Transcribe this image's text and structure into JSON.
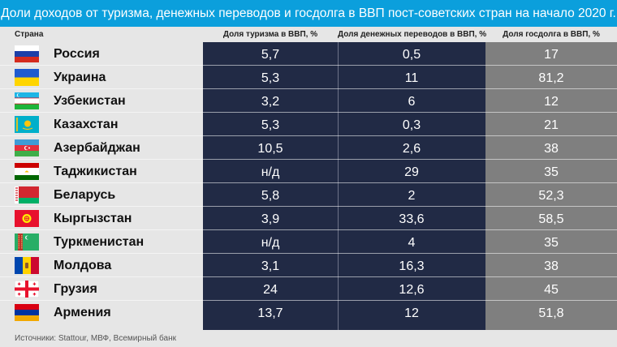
{
  "header": {
    "title": "Доли доходов от туризма, денежных переводов и госдолга в ВВП пост-советских стран на начало 2020 г."
  },
  "columns": {
    "country": "Страна",
    "tourism": "Доля туризма в ВВП, %",
    "remittances": "Доля денежных переводов в ВВП, %",
    "debt": "Доля госдолга в ВВП, %"
  },
  "rows": [
    {
      "country": "Россия",
      "flag": "russia-flag-icon",
      "tourism": "5,7",
      "remittances": "0,5",
      "debt": "17"
    },
    {
      "country": "Украина",
      "flag": "ukraine-flag-icon",
      "tourism": "5,3",
      "remittances": "11",
      "debt": "81,2"
    },
    {
      "country": "Узбекистан",
      "flag": "uzbekistan-flag-icon",
      "tourism": "3,2",
      "remittances": "6",
      "debt": "12"
    },
    {
      "country": "Казахстан",
      "flag": "kazakhstan-flag-icon",
      "tourism": "5,3",
      "remittances": "0,3",
      "debt": "21"
    },
    {
      "country": "Азербайджан",
      "flag": "azerbaijan-flag-icon",
      "tourism": "10,5",
      "remittances": "2,6",
      "debt": "38"
    },
    {
      "country": "Таджикистан",
      "flag": "tajikistan-flag-icon",
      "tourism": "н/д",
      "remittances": "29",
      "debt": "35"
    },
    {
      "country": "Беларусь",
      "flag": "belarus-flag-icon",
      "tourism": "5,8",
      "remittances": "2",
      "debt": "52,3"
    },
    {
      "country": "Кыргызстан",
      "flag": "kyrgyzstan-flag-icon",
      "tourism": "3,9",
      "remittances": "33,6",
      "debt": "58,5"
    },
    {
      "country": "Туркменистан",
      "flag": "turkmenistan-flag-icon",
      "tourism": "н/д",
      "remittances": "4",
      "debt": "35"
    },
    {
      "country": "Молдова",
      "flag": "moldova-flag-icon",
      "tourism": "3,1",
      "remittances": "16,3",
      "debt": "38"
    },
    {
      "country": "Грузия",
      "flag": "georgia-flag-icon",
      "tourism": "24",
      "remittances": "12,6",
      "debt": "45"
    },
    {
      "country": "Армения",
      "flag": "armenia-flag-icon",
      "tourism": "13,7",
      "remittances": "12",
      "debt": "51,8"
    }
  ],
  "chart_data": {
    "type": "table",
    "title": "Доли доходов от туризма, денежных переводов и госдолга в ВВП пост-советских стран на начало 2020 г.",
    "columns": [
      "Страна",
      "Доля туризма в ВВП, %",
      "Доля денежных переводов в ВВП, %",
      "Доля госдолга в ВВП, %"
    ],
    "categories": [
      "Россия",
      "Украина",
      "Узбекистан",
      "Казахстан",
      "Азербайджан",
      "Таджикистан",
      "Беларусь",
      "Кыргызстан",
      "Туркменистан",
      "Молдова",
      "Грузия",
      "Армения"
    ],
    "series": [
      {
        "name": "Доля туризма в ВВП, %",
        "values": [
          5.7,
          5.3,
          3.2,
          5.3,
          10.5,
          null,
          5.8,
          3.9,
          null,
          3.1,
          24,
          13.7
        ]
      },
      {
        "name": "Доля денежных переводов в ВВП, %",
        "values": [
          0.5,
          11,
          6,
          0.3,
          2.6,
          29,
          2,
          33.6,
          4,
          16.3,
          12.6,
          12
        ]
      },
      {
        "name": "Доля госдолга в ВВП, %",
        "values": [
          17,
          81.2,
          12,
          21,
          38,
          35,
          52.3,
          58.5,
          35,
          38,
          45,
          51.8
        ]
      }
    ]
  },
  "colors": {
    "header": "#0b9fdc",
    "dark_column": "#212a45",
    "grey_column": "#7f7f7f",
    "background": "#e6e6e6"
  },
  "footer": {
    "source": "Источники: Stattour, МВФ, Всемирный банк"
  }
}
